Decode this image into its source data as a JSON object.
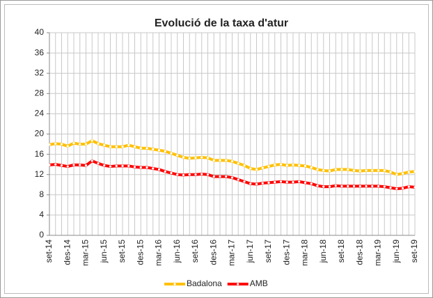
{
  "chart_data": {
    "type": "line",
    "title": "Evolució de la taxa d'atur",
    "categories": [
      "set-14",
      null,
      null,
      "des-14",
      null,
      null,
      "mar-15",
      null,
      null,
      "jun-15",
      null,
      null,
      "set-15",
      null,
      null,
      "des-15",
      null,
      null,
      "mar-16",
      null,
      null,
      "jun-16",
      null,
      null,
      "set-16",
      null,
      null,
      "des-16",
      null,
      null,
      "mar-17",
      null,
      null,
      "jun-17",
      null,
      null,
      "set-17",
      null,
      null,
      "des-17",
      null,
      null,
      "mar-18",
      null,
      null,
      "jun-18",
      null,
      null,
      "set-18",
      null,
      null,
      "des-18",
      null,
      null,
      "mar-19",
      null,
      null,
      "jun-19",
      null,
      null,
      "set-19"
    ],
    "series": [
      {
        "name": "Badalona",
        "color": "#ffc000",
        "values": [
          17.9,
          18.1,
          18.0,
          17.6,
          18.2,
          18.0,
          18.0,
          18.7,
          18.1,
          17.8,
          17.5,
          17.5,
          17.5,
          17.8,
          17.5,
          17.2,
          17.2,
          17.0,
          16.8,
          16.6,
          16.2,
          15.8,
          15.4,
          15.2,
          15.3,
          15.4,
          15.3,
          14.8,
          14.8,
          14.8,
          14.6,
          14.2,
          13.8,
          13.2,
          13.0,
          13.3,
          13.6,
          13.9,
          14.0,
          13.8,
          13.9,
          13.8,
          13.7,
          13.4,
          13.0,
          12.8,
          12.7,
          13.0,
          13.0,
          13.0,
          12.8,
          12.7,
          12.8,
          12.8,
          12.8,
          12.8,
          12.5,
          12.0,
          12.2,
          12.5,
          12.6
        ]
      },
      {
        "name": "AMB",
        "color": "#ff0000",
        "values": [
          13.9,
          14.0,
          13.8,
          13.6,
          13.9,
          13.9,
          13.8,
          14.7,
          14.2,
          13.8,
          13.6,
          13.7,
          13.7,
          13.7,
          13.5,
          13.4,
          13.4,
          13.2,
          13.0,
          12.6,
          12.3,
          12.0,
          11.9,
          12.0,
          12.0,
          12.1,
          12.0,
          11.6,
          11.6,
          11.6,
          11.4,
          11.0,
          10.6,
          10.2,
          10.1,
          10.3,
          10.4,
          10.5,
          10.6,
          10.5,
          10.5,
          10.6,
          10.4,
          10.2,
          9.8,
          9.6,
          9.6,
          9.8,
          9.7,
          9.7,
          9.7,
          9.7,
          9.7,
          9.7,
          9.7,
          9.6,
          9.4,
          9.2,
          9.3,
          9.6,
          9.5
        ]
      }
    ],
    "ylim": [
      0,
      40
    ],
    "yticks": [
      0,
      4,
      8,
      12,
      16,
      20,
      24,
      28,
      32,
      36,
      40
    ],
    "grid": true,
    "legend": "bottom"
  }
}
